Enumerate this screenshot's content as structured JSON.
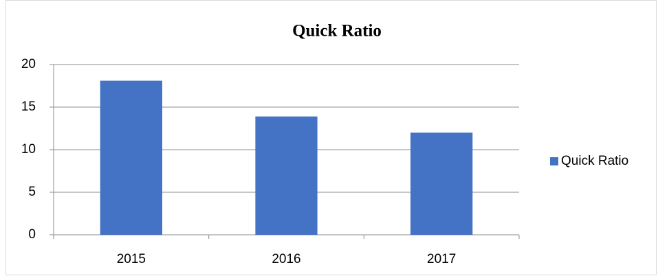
{
  "chart_data": {
    "type": "bar",
    "title": "Quick Ratio",
    "categories": [
      "2015",
      "2016",
      "2017"
    ],
    "series": [
      {
        "name": "Quick Ratio",
        "color": "#4472c4",
        "values": [
          18.1,
          13.9,
          12.0
        ]
      }
    ],
    "ylim": [
      0,
      20
    ],
    "yticks": [
      0,
      5,
      10,
      15,
      20
    ],
    "grid": true,
    "legend": "right"
  }
}
